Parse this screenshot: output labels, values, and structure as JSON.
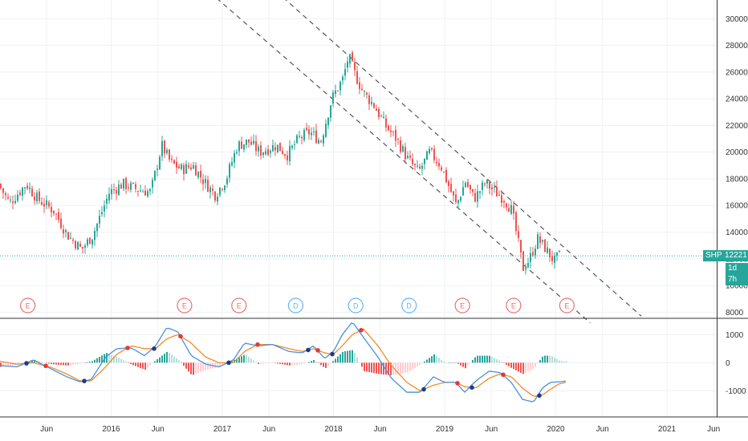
{
  "chart_data": [
    {
      "type": "candlestick",
      "ticker": "SHP",
      "last_price": "12221",
      "countdown": "1d 7h",
      "ylim": [
        7600,
        31400
      ],
      "y_ticks": [
        8000,
        10000,
        12000,
        14000,
        16000,
        18000,
        20000,
        22000,
        24000,
        26000,
        28000,
        30000
      ],
      "x_ticks": [
        {
          "label": "Jun",
          "t": 2015.42
        },
        {
          "label": "2016",
          "t": 2016.0
        },
        {
          "label": "Jun",
          "t": 2016.42
        },
        {
          "label": "2017",
          "t": 2017.0
        },
        {
          "label": "Jun",
          "t": 2017.42
        },
        {
          "label": "2018",
          "t": 2018.0
        },
        {
          "label": "Jun",
          "t": 2018.42
        },
        {
          "label": "2019",
          "t": 2019.0
        },
        {
          "label": "Jun",
          "t": 2019.42
        },
        {
          "label": "2020",
          "t": 2020.0
        },
        {
          "label": "Jun",
          "t": 2020.42
        },
        {
          "label": "2021",
          "t": 2021.0
        },
        {
          "label": "Jun",
          "t": 2021.42
        }
      ],
      "price_path": [
        [
          2015.0,
          17600
        ],
        [
          2015.1,
          16200
        ],
        [
          2015.25,
          17600
        ],
        [
          2015.35,
          16500
        ],
        [
          2015.5,
          15600
        ],
        [
          2015.62,
          13800
        ],
        [
          2015.75,
          12700
        ],
        [
          2015.85,
          13800
        ],
        [
          2016.0,
          17000
        ],
        [
          2016.12,
          17600
        ],
        [
          2016.25,
          17200
        ],
        [
          2016.37,
          17000
        ],
        [
          2016.47,
          20500
        ],
        [
          2016.55,
          19200
        ],
        [
          2016.65,
          18700
        ],
        [
          2016.75,
          19000
        ],
        [
          2016.85,
          17800
        ],
        [
          2016.95,
          16800
        ],
        [
          2017.05,
          18000
        ],
        [
          2017.15,
          20500
        ],
        [
          2017.25,
          20800
        ],
        [
          2017.35,
          20000
        ],
        [
          2017.5,
          20500
        ],
        [
          2017.6,
          19800
        ],
        [
          2017.7,
          21000
        ],
        [
          2017.8,
          21500
        ],
        [
          2017.9,
          20800
        ],
        [
          2018.0,
          24000
        ],
        [
          2018.1,
          25500
        ],
        [
          2018.15,
          27200
        ],
        [
          2018.2,
          26000
        ],
        [
          2018.28,
          24500
        ],
        [
          2018.38,
          23500
        ],
        [
          2018.48,
          22000
        ],
        [
          2018.58,
          21000
        ],
        [
          2018.68,
          19500
        ],
        [
          2018.78,
          18500
        ],
        [
          2018.88,
          20000
        ],
        [
          2018.98,
          19000
        ],
        [
          2019.05,
          17500
        ],
        [
          2019.12,
          16000
        ],
        [
          2019.2,
          17800
        ],
        [
          2019.28,
          16500
        ],
        [
          2019.38,
          17700
        ],
        [
          2019.47,
          17000
        ],
        [
          2019.55,
          16500
        ],
        [
          2019.62,
          15600
        ],
        [
          2019.67,
          13500
        ],
        [
          2019.72,
          11300
        ],
        [
          2019.78,
          12000
        ],
        [
          2019.85,
          13500
        ],
        [
          2019.92,
          12800
        ],
        [
          2020.0,
          11800
        ],
        [
          2020.04,
          12221
        ]
      ],
      "channel_lines": [
        {
          "from": [
            2016.65,
            33700
          ],
          "to": [
            2020.31,
            7200
          ]
        },
        {
          "from": [
            2017.37,
            32900
          ],
          "to": [
            2020.77,
            7700
          ]
        }
      ],
      "current_price_line": 12221,
      "event_markers": [
        {
          "label": "E",
          "t": 2015.25,
          "kind": "earnings"
        },
        {
          "label": "E",
          "t": 2016.66,
          "kind": "earnings"
        },
        {
          "label": "E",
          "t": 2017.15,
          "kind": "earnings"
        },
        {
          "label": "D",
          "t": 2017.66,
          "kind": "dividend"
        },
        {
          "label": "D",
          "t": 2018.2,
          "kind": "dividend"
        },
        {
          "label": "D",
          "t": 2018.68,
          "kind": "dividend"
        },
        {
          "label": "E",
          "t": 2019.16,
          "kind": "earnings"
        },
        {
          "label": "E",
          "t": 2019.62,
          "kind": "earnings"
        },
        {
          "label": "E",
          "t": 2020.1,
          "kind": "earnings"
        }
      ]
    },
    {
      "type": "macd",
      "ylim": [
        -1900,
        1550
      ],
      "y_ticks": [
        -1000,
        0,
        1000
      ],
      "macd_path": [
        [
          2015.0,
          -100
        ],
        [
          2015.15,
          -150
        ],
        [
          2015.3,
          100
        ],
        [
          2015.45,
          -200
        ],
        [
          2015.6,
          -500
        ],
        [
          2015.72,
          -680
        ],
        [
          2015.82,
          -600
        ],
        [
          2015.95,
          200
        ],
        [
          2016.05,
          500
        ],
        [
          2016.18,
          530
        ],
        [
          2016.3,
          250
        ],
        [
          2016.4,
          600
        ],
        [
          2016.5,
          1250
        ],
        [
          2016.6,
          1100
        ],
        [
          2016.72,
          250
        ],
        [
          2016.85,
          -50
        ],
        [
          2016.97,
          -150
        ],
        [
          2017.1,
          100
        ],
        [
          2017.2,
          700
        ],
        [
          2017.32,
          600
        ],
        [
          2017.45,
          650
        ],
        [
          2017.6,
          400
        ],
        [
          2017.72,
          350
        ],
        [
          2017.82,
          600
        ],
        [
          2017.92,
          150
        ],
        [
          2018.0,
          400
        ],
        [
          2018.08,
          1000
        ],
        [
          2018.17,
          1450
        ],
        [
          2018.27,
          900
        ],
        [
          2018.4,
          200
        ],
        [
          2018.52,
          -550
        ],
        [
          2018.66,
          -1050
        ],
        [
          2018.78,
          -1050
        ],
        [
          2018.9,
          -500
        ],
        [
          2019.0,
          -700
        ],
        [
          2019.1,
          -700
        ],
        [
          2019.18,
          -1050
        ],
        [
          2019.28,
          -650
        ],
        [
          2019.4,
          -300
        ],
        [
          2019.5,
          -350
        ],
        [
          2019.6,
          -700
        ],
        [
          2019.7,
          -1300
        ],
        [
          2019.8,
          -1400
        ],
        [
          2019.88,
          -900
        ],
        [
          2019.95,
          -700
        ],
        [
          2020.03,
          -680
        ],
        [
          2020.1,
          -650
        ]
      ],
      "signal_path": [
        [
          2015.0,
          50
        ],
        [
          2015.15,
          -50
        ],
        [
          2015.3,
          0
        ],
        [
          2015.45,
          -150
        ],
        [
          2015.6,
          -400
        ],
        [
          2015.72,
          -650
        ],
        [
          2015.82,
          -650
        ],
        [
          2015.95,
          -150
        ],
        [
          2016.05,
          300
        ],
        [
          2016.18,
          600
        ],
        [
          2016.3,
          500
        ],
        [
          2016.4,
          500
        ],
        [
          2016.5,
          850
        ],
        [
          2016.6,
          1000
        ],
        [
          2016.72,
          700
        ],
        [
          2016.85,
          200
        ],
        [
          2016.97,
          0
        ],
        [
          2017.1,
          0
        ],
        [
          2017.2,
          400
        ],
        [
          2017.32,
          650
        ],
        [
          2017.45,
          650
        ],
        [
          2017.6,
          500
        ],
        [
          2017.72,
          400
        ],
        [
          2017.82,
          500
        ],
        [
          2017.92,
          350
        ],
        [
          2018.0,
          300
        ],
        [
          2018.08,
          600
        ],
        [
          2018.17,
          1000
        ],
        [
          2018.27,
          1200
        ],
        [
          2018.4,
          600
        ],
        [
          2018.52,
          -100
        ],
        [
          2018.66,
          -700
        ],
        [
          2018.78,
          -1000
        ],
        [
          2018.9,
          -800
        ],
        [
          2019.0,
          -700
        ],
        [
          2019.1,
          -700
        ],
        [
          2019.18,
          -850
        ],
        [
          2019.28,
          -900
        ],
        [
          2019.4,
          -550
        ],
        [
          2019.5,
          -400
        ],
        [
          2019.6,
          -500
        ],
        [
          2019.7,
          -900
        ],
        [
          2019.8,
          -1200
        ],
        [
          2019.88,
          -1150
        ],
        [
          2019.95,
          -950
        ],
        [
          2020.03,
          -750
        ],
        [
          2020.1,
          -690
        ]
      ],
      "colors": {
        "macd": "#4a90d9",
        "signal": "#f08c2a",
        "hist_up_strong": "#26a69a",
        "hist_up_weak": "#b2dfdb",
        "hist_down_strong": "#ef5350",
        "hist_down_weak": "#ffcdd2",
        "cross_up": "#1e3a8a",
        "cross_down": "#e53935"
      }
    }
  ],
  "colors": {
    "up": "#26a69a",
    "down": "#ef5350",
    "grid": "#eef1f5",
    "channel": "#555555",
    "price_line": "#26a69a",
    "earnings": "#e57373",
    "dividend": "#64b5f6",
    "axis_text": "#333333"
  }
}
